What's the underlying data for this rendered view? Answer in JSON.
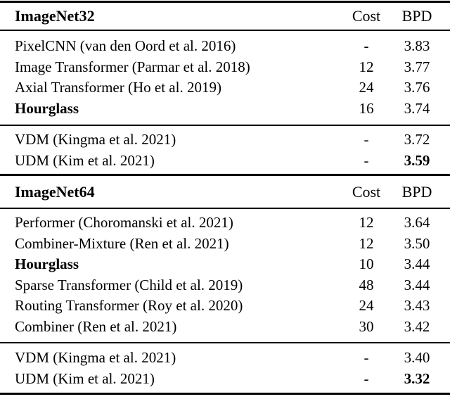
{
  "page": {
    "background_color": "#ffffff",
    "text_color": "#000000",
    "rule_color": "#000000"
  },
  "tables": [
    {
      "title": "ImageNet32",
      "columns": {
        "cost": "Cost",
        "bpd": "BPD"
      },
      "groups": [
        {
          "rows": [
            {
              "model": "PixelCNN (van den Oord et al. 2016)",
              "cost": "-",
              "bpd": "3.83"
            },
            {
              "model": "Image Transformer (Parmar et al. 2018)",
              "cost": "12",
              "bpd": "3.77"
            },
            {
              "model": "Axial Transformer (Ho et al. 2019)",
              "cost": "24",
              "bpd": "3.76"
            },
            {
              "model": "Hourglass",
              "cost": "16",
              "bpd": "3.74"
            }
          ]
        },
        {
          "rows": [
            {
              "model": "VDM (Kingma et al. 2021)",
              "cost": "-",
              "bpd": "3.72"
            },
            {
              "model": "UDM (Kim et al. 2021)",
              "cost": "-",
              "bpd": "3.59"
            }
          ]
        }
      ]
    },
    {
      "title": "ImageNet64",
      "columns": {
        "cost": "Cost",
        "bpd": "BPD"
      },
      "groups": [
        {
          "rows": [
            {
              "model": "Performer (Choromanski et al. 2021)",
              "cost": "12",
              "bpd": "3.64"
            },
            {
              "model": "Combiner-Mixture (Ren et al. 2021)",
              "cost": "12",
              "bpd": "3.50"
            },
            {
              "model": "Hourglass",
              "cost": "10",
              "bpd": "3.44"
            },
            {
              "model": "Sparse Transformer (Child et al. 2019)",
              "cost": "48",
              "bpd": "3.44"
            },
            {
              "model": "Routing Transformer (Roy et al. 2020)",
              "cost": "24",
              "bpd": "3.43"
            },
            {
              "model": "Combiner (Ren et al. 2021)",
              "cost": "30",
              "bpd": "3.42"
            }
          ]
        },
        {
          "rows": [
            {
              "model": "VDM (Kingma et al. 2021)",
              "cost": "-",
              "bpd": "3.40"
            },
            {
              "model": "UDM (Kim et al. 2021)",
              "cost": "-",
              "bpd": "3.32"
            }
          ]
        }
      ]
    }
  ]
}
